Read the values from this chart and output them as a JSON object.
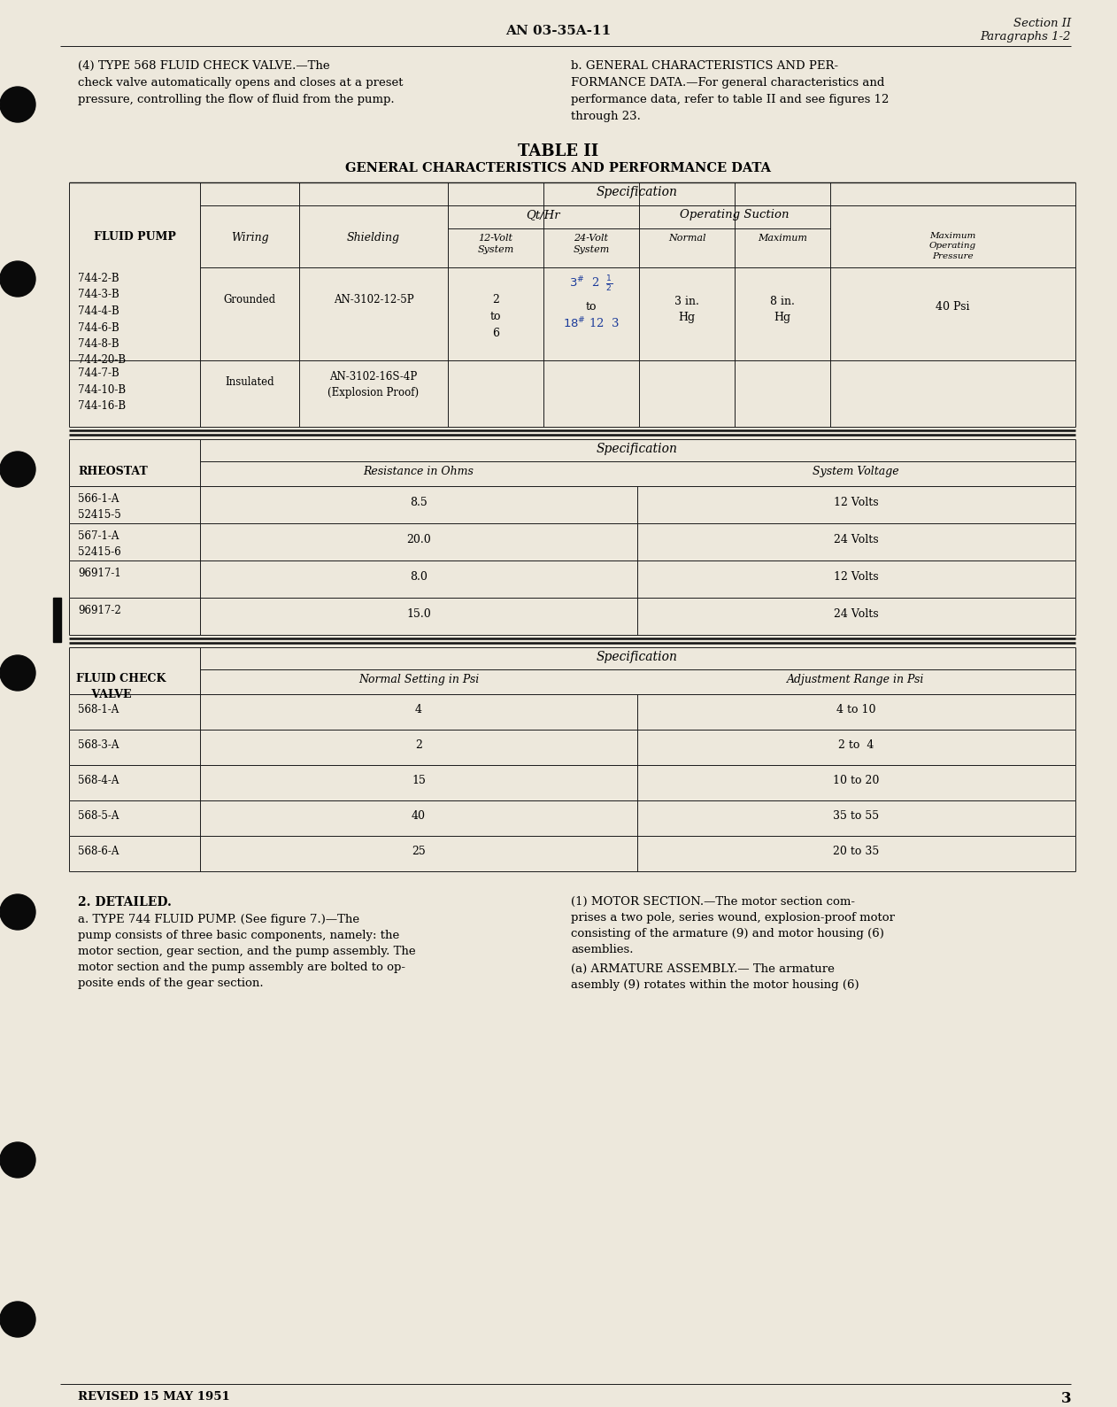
{
  "bg_color": "#ede8dc",
  "page_title_center": "AN 03-35A-11",
  "page_title_right_line1": "Section II",
  "page_title_right_line2": "Paragraphs 1-2",
  "page_number": "3",
  "revised_text": "REVISED 15 MAY 1951",
  "table_title_line1": "TABLE II",
  "table_title_line2": "GENERAL CHARACTERISTICS AND PERFORMANCE DATA"
}
